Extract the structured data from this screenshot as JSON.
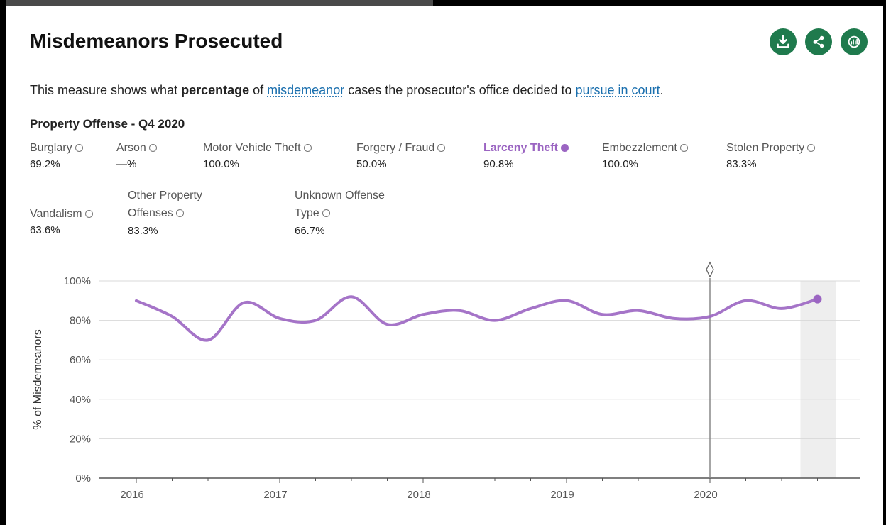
{
  "header": {
    "title": "Misdemeanors Prosecuted",
    "description_pre": "This measure shows what ",
    "description_bold": "percentage",
    "description_mid1": " of ",
    "description_link1": "misdemeanor",
    "description_mid2": " cases the prosecutor's office decided to ",
    "description_link2": "pursue in court",
    "description_end": "."
  },
  "actions": [
    {
      "icon": "download-icon"
    },
    {
      "icon": "share-icon"
    },
    {
      "icon": "chart-data-icon"
    }
  ],
  "subtitle": "Property Offense - Q4 2020",
  "legend": {
    "burglary": {
      "label": "Burglary",
      "value": "69.2%"
    },
    "arson": {
      "label": "Arson",
      "value": "—%"
    },
    "motor_vehicle_theft": {
      "label": "Motor Vehicle Theft",
      "value": "100.0%"
    },
    "forgery_fraud": {
      "label": "Forgery / Fraud",
      "value": "50.0%"
    },
    "larceny_theft": {
      "label": "Larceny Theft",
      "value": "90.8%"
    },
    "embezzlement": {
      "label": "Embezzlement",
      "value": "100.0%"
    },
    "stolen_property": {
      "label": "Stolen Property",
      "value": "83.3%"
    },
    "vandalism": {
      "label": "Vandalism",
      "value": "63.6%"
    },
    "other_property_line1": "Other Property",
    "other_property_line2": "Offenses",
    "other_property_value": "83.3%",
    "unknown_line1": "Unknown Offense",
    "unknown_line2": "Type",
    "unknown_value": "66.7%"
  },
  "colors": {
    "accent_green": "#1f7a4d",
    "series_purple": "#9b65c2",
    "link_blue": "#1a6fae"
  },
  "chart_data": {
    "type": "line",
    "ylabel": "% of Misdemeanors",
    "ylim": [
      0,
      100
    ],
    "yticks": [
      "100%",
      "80%",
      "60%",
      "40%",
      "20%",
      "0%"
    ],
    "xtick_labels": [
      "2016",
      "2017",
      "2018",
      "2019",
      "2020"
    ],
    "grid": true,
    "highlighted_marker_label": "2020",
    "series": [
      {
        "name": "Larceny Theft",
        "x": [
          "2016 Q1",
          "2016 Q2",
          "2016 Q3",
          "2016 Q4",
          "2017 Q1",
          "2017 Q2",
          "2017 Q3",
          "2017 Q4",
          "2018 Q1",
          "2018 Q2",
          "2018 Q3",
          "2018 Q4",
          "2019 Q1",
          "2019 Q2",
          "2019 Q3",
          "2019 Q4",
          "2020 Q1",
          "2020 Q2",
          "2020 Q3",
          "2020 Q4"
        ],
        "values": [
          90,
          82,
          70,
          89,
          81,
          80,
          92,
          78,
          83,
          85,
          80,
          86,
          90,
          83,
          85,
          81,
          82,
          90,
          86,
          90.8
        ]
      }
    ]
  }
}
